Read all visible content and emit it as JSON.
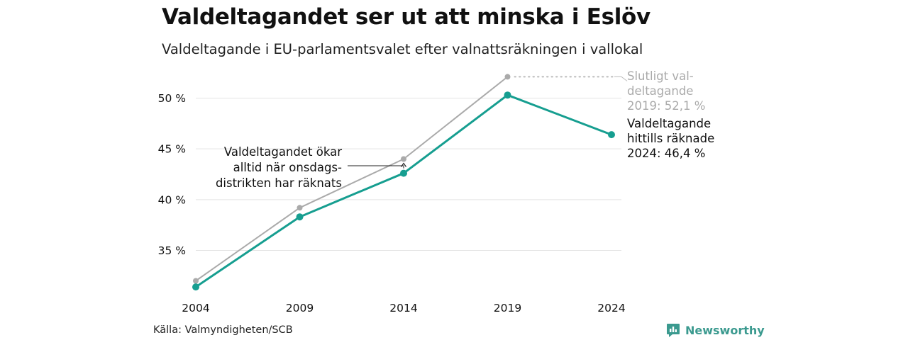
{
  "header": {
    "title": "Valdeltagandet ser ut att minska i Eslöv",
    "subtitle": "Valdeltagande i EU-parlamentsvalet efter valnattsräkningen i vallokal"
  },
  "footer": {
    "source": "Källa: Valmyndigheten/SCB",
    "brand": "Newsworthy"
  },
  "chart_data": {
    "type": "line",
    "x": [
      2004,
      2009,
      2014,
      2019,
      2024
    ],
    "y_ticks": [
      35,
      40,
      45,
      50
    ],
    "y_tick_labels": [
      "35 %",
      "40 %",
      "45 %",
      "50 %"
    ],
    "x_tick_labels": [
      "2004",
      "2009",
      "2014",
      "2019",
      "2024"
    ],
    "ylim": [
      30,
      53
    ],
    "grid": "horizontal",
    "series": [
      {
        "values": [
          32.0,
          39.2,
          44.0,
          52.1,
          null
        ],
        "color": "#aaaaaa"
      },
      {
        "values": [
          31.4,
          38.3,
          42.6,
          50.3,
          46.4
        ],
        "color": "#169e90"
      }
    ],
    "annotations": {
      "final_label": [
        "Slutligt val-",
        "deltagande",
        "2019: 52,1 %"
      ],
      "counted_label": [
        "Valdeltagande",
        "hittills räknade",
        "2024: 46,4 %"
      ],
      "note_label": [
        "Valdeltagandet ökar",
        "alltid när onsdags-",
        "distrikten har räknats"
      ]
    },
    "colors": {
      "final": "#aaaaaa",
      "counted": "#169e90",
      "grid": "#e3e3e3",
      "text": "#111111"
    }
  }
}
